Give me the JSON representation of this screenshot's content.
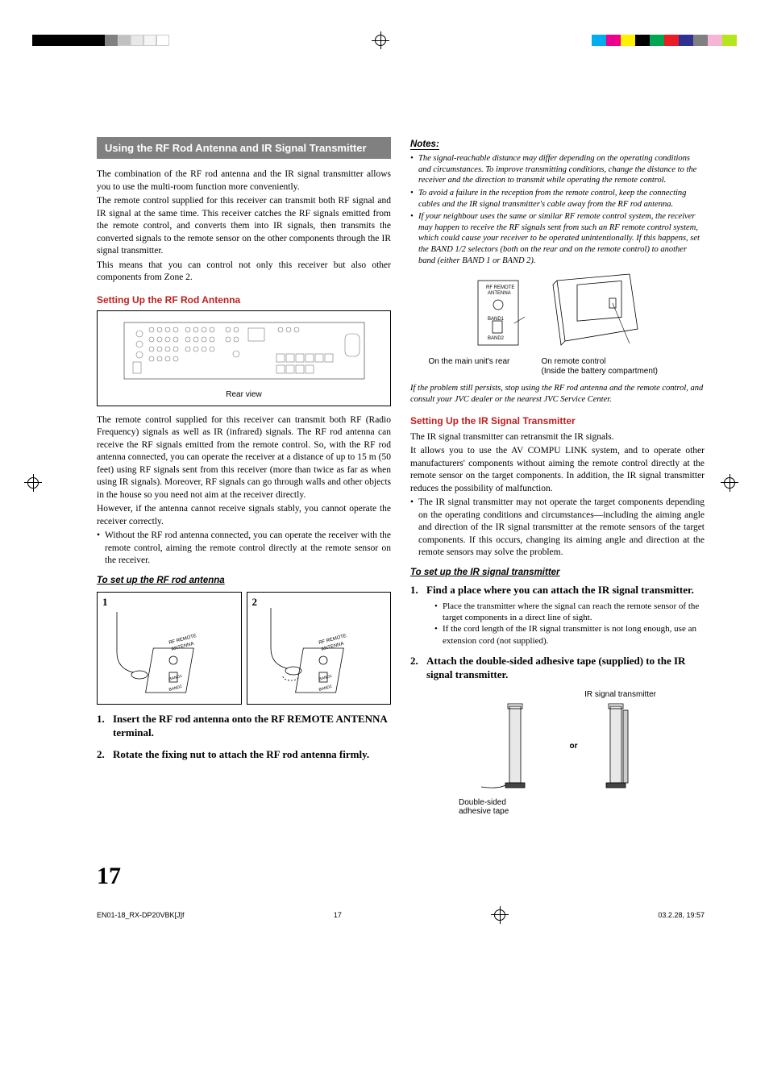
{
  "registration_colors_left": [
    "#000000",
    "#000000",
    "#000000",
    "#000000",
    "#808080",
    "#c0c0c0",
    "#e8e8e8",
    "#f5f5f5",
    "#ffffff"
  ],
  "registration_colors_right": [
    "#00aeef",
    "#ec008c",
    "#fff200",
    "#000000",
    "#00a651",
    "#ed1c24",
    "#2e3192",
    "#808080",
    "#f7b5d5",
    "#b5e61d"
  ],
  "page_number": "17",
  "footer": {
    "file": "EN01-18_RX-DP20VBK[J]f",
    "page": "17",
    "date": "03.2.28, 19:57"
  },
  "col1": {
    "section_title": "Using the RF Rod Antenna and IR Signal Transmitter",
    "intro_p1": "The combination of the RF rod antenna and the IR signal transmitter allows you to use the multi-room function more conveniently.",
    "intro_p2": "The remote control supplied for this receiver can transmit both RF signal and IR signal at the same time. This receiver catches the RF signals emitted from the remote control, and converts them into IR signals, then transmits the converted signals to the remote sensor on the other components through the IR signal transmitter.",
    "intro_p3": "This means that you can control not only this receiver but also other components from Zone 2.",
    "rf_heading": "Setting Up the RF Rod Antenna",
    "rear_view_caption": "Rear view",
    "rf_body1": "The remote control supplied for this receiver can transmit both RF (Radio Frequency) signals as well as IR (infrared) signals. The RF rod antenna can receive the RF signals emitted from the remote control. So, with the RF rod antenna connected, you can operate the receiver at a distance of up to 15 m (50 feet) using RF signals sent from this receiver (more than twice as far as when using IR signals). Moreover, RF signals can go through walls and other objects in the house so you need not aim at the receiver directly.",
    "rf_body2": "However, if the antenna cannot receive signals stably, you cannot operate the receiver correctly.",
    "rf_bullet": "Without the RF rod antenna connected, you can operate the receiver with the remote control, aiming the remote control directly at the remote sensor on the receiver.",
    "rf_setup_hd": "To set up the RF rod antenna",
    "step_labels": {
      "s1": "1",
      "s2": "2"
    },
    "diag_labels": {
      "rf_remote": "RF REMOTE",
      "antenna": "ANTENNA",
      "band1": "BAND1",
      "band2": "BAND2"
    },
    "step1_text": "Insert the RF rod antenna onto the RF REMOTE ANTENNA terminal.",
    "step2_text": "Rotate the fixing nut to attach the RF rod antenna firmly."
  },
  "col2": {
    "notes_hd": "Notes:",
    "note1": "The signal-reachable distance may differ depending on the operating conditions and circumstances. To improve transmitting conditions, change the distance to the receiver and the direction to transmit while operating the remote control.",
    "note2": "To avoid a failure in the reception from the remote control, keep the connecting cables and the IR signal transmitter's cable away from the RF rod antenna.",
    "note3": "If your neighbour uses the same or similar RF remote control system, the receiver may happen to receive the RF signals sent from such an RF remote control system, which could cause your receiver to be operated unintentionally. If this happens, set the BAND 1/2 selectors (both on the rear and on the remote control) to another band (either BAND 1 or BAND 2).",
    "mainunit_labels": {
      "rf_remote": "RF REMOTE",
      "antenna": "ANTENNA",
      "band1": "BAND1",
      "band2": "BAND2"
    },
    "diag_cap_left": "On the main unit's rear",
    "diag_cap_right_1": "On remote control",
    "diag_cap_right_2": "(Inside the battery compartment)",
    "persist_note": "If the problem still persists, stop using the RF rod antenna and the remote control, and consult your JVC dealer or the nearest JVC Service Center.",
    "ir_heading": "Setting Up the IR Signal Transmitter",
    "ir_body1": "The IR signal transmitter can retransmit the IR signals.",
    "ir_body2": "It allows you to use the AV COMPU LINK system, and to operate other manufacturers' components without aiming the remote control directly at the remote sensor on the target components. In addition, the IR signal transmitter reduces the possibility of malfunction.",
    "ir_bullet": "The IR signal transmitter may not operate the target components depending on the operating conditions and circumstances—including the aiming angle and direction of the IR signal transmitter at the remote sensors of the target components. If this occurs, changing its aiming angle and direction at the remote sensors may solve the problem.",
    "ir_setup_hd": "To set up the IR signal transmitter",
    "ir_step1": "Find a place where you can attach the IR signal transmitter.",
    "ir_step1_sub1": "Place the transmitter where the signal can reach the remote sensor of the target components in a direct line of sight.",
    "ir_step1_sub2": "If the cord length of the IR signal transmitter is not long enough, use an extension cord (not supplied).",
    "ir_step2": "Attach the double-sided adhesive tape (supplied) to the IR signal transmitter.",
    "ir_fig_top": "IR signal transmitter",
    "ir_fig_or": "or",
    "ir_fig_bottom": "Double-sided\nadhesive tape"
  }
}
